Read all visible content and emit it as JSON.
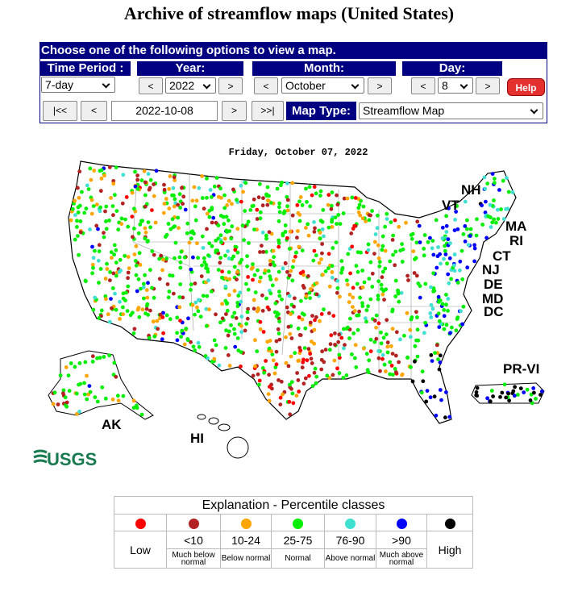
{
  "header": {
    "title": "Archive of streamflow maps (United States)"
  },
  "controls": {
    "banner": "Choose one of the following options to view a map.",
    "time_period": {
      "label": "Time Period :",
      "value": "7-day"
    },
    "year": {
      "label": "Year:",
      "prev": "<",
      "value": "2022",
      "next": ">"
    },
    "month": {
      "label": "Month:",
      "prev": "<",
      "value": "October",
      "next": ">"
    },
    "day": {
      "label": "Day:",
      "prev": "<",
      "value": "8",
      "next": ">"
    },
    "help": "Help",
    "nav_back": [
      "|<<",
      "<"
    ],
    "date": "2022-10-08",
    "nav_forward": [
      ">",
      ">>|"
    ],
    "map_type": {
      "label": "Map Type:",
      "value": "Streamflow Map"
    }
  },
  "map": {
    "date": "Friday, October 07, 2022",
    "labels": [
      "NH",
      "VT",
      "MA",
      "RI",
      "CT",
      "NJ",
      "DE",
      "MD",
      "DC",
      "PR-VI",
      "AK",
      "HI"
    ],
    "logo": "USGS"
  },
  "legend": {
    "title": "Explanation - Percentile classes",
    "classes": [
      {
        "name": "Low"
      },
      {
        "range": "<10",
        "desc": "Much below normal"
      },
      {
        "range": "10-24",
        "desc": "Below normal"
      },
      {
        "range": "25-75",
        "desc": "Normal"
      },
      {
        "range": "76-90",
        "desc": "Above normal"
      },
      {
        "range": ">90",
        "desc": "Much above normal"
      },
      {
        "name": "High"
      }
    ]
  }
}
